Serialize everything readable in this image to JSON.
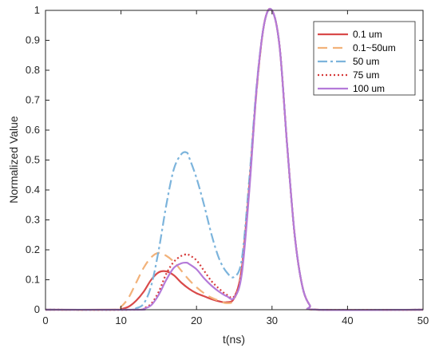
{
  "chart_data": {
    "type": "line",
    "title": "",
    "xlabel": "t(ns)",
    "ylabel": "Normalized Value",
    "xlim": [
      0,
      50
    ],
    "ylim": [
      0,
      1
    ],
    "xticks": [
      0,
      10,
      20,
      30,
      40,
      50
    ],
    "yticks": [
      0,
      0.1,
      0.2,
      0.3,
      0.4,
      0.5,
      0.6,
      0.7,
      0.8,
      0.9,
      1
    ],
    "xtick_labels": [
      "0",
      "10",
      "20",
      "30",
      "40",
      "50"
    ],
    "ytick_labels": [
      "0",
      "0.1",
      "0.2",
      "0.3",
      "0.4",
      "0.5",
      "0.6",
      "0.7",
      "0.8",
      "0.9",
      "1"
    ],
    "grid": false,
    "legend_position": "top-right",
    "series": [
      {
        "name": "0.1 um",
        "color": "#d94a4a",
        "dash": "solid",
        "x": [
          0,
          9,
          10,
          11,
          12,
          13,
          14,
          15,
          16,
          17,
          18,
          19,
          20,
          21,
          22,
          23,
          24,
          25,
          26,
          27,
          28,
          29,
          30,
          31,
          32,
          33,
          34,
          35,
          36,
          50
        ],
        "y": [
          0,
          0,
          0.002,
          0.01,
          0.03,
          0.06,
          0.1,
          0.125,
          0.128,
          0.115,
          0.09,
          0.07,
          0.055,
          0.045,
          0.035,
          0.028,
          0.025,
          0.04,
          0.14,
          0.42,
          0.75,
          0.96,
          1.0,
          0.88,
          0.55,
          0.25,
          0.08,
          0.015,
          0,
          0
        ]
      },
      {
        "name": "0.1~50um",
        "color": "#f2b27a",
        "dash": "12,7",
        "x": [
          0,
          9,
          10,
          11,
          12,
          13,
          14,
          15,
          16,
          17,
          18,
          19,
          20,
          21,
          22,
          23,
          24,
          25,
          26,
          27,
          28,
          29,
          30,
          31,
          32,
          33,
          34,
          35,
          36,
          50
        ],
        "y": [
          0,
          0,
          0.01,
          0.04,
          0.09,
          0.14,
          0.175,
          0.19,
          0.18,
          0.16,
          0.13,
          0.1,
          0.075,
          0.055,
          0.04,
          0.03,
          0.022,
          0.035,
          0.13,
          0.41,
          0.74,
          0.96,
          1.0,
          0.88,
          0.55,
          0.25,
          0.08,
          0.015,
          0,
          0
        ]
      },
      {
        "name": "50 um",
        "color": "#7cb4dc",
        "dash": "12,4,3,4",
        "x": [
          0,
          11,
          12,
          13,
          14,
          15,
          16,
          17,
          18,
          18.7,
          19,
          20,
          21,
          22,
          23,
          24,
          25,
          26,
          27,
          28,
          29,
          30,
          31,
          32,
          33,
          34,
          35,
          36,
          50
        ],
        "y": [
          0,
          0,
          0.005,
          0.02,
          0.08,
          0.2,
          0.35,
          0.47,
          0.52,
          0.525,
          0.51,
          0.44,
          0.35,
          0.25,
          0.17,
          0.125,
          0.11,
          0.17,
          0.44,
          0.76,
          0.96,
          1.0,
          0.88,
          0.55,
          0.25,
          0.08,
          0.015,
          0,
          0
        ]
      },
      {
        "name": "75 um",
        "color": "#d63a3a",
        "dash": "2,3",
        "x": [
          0,
          12,
          13,
          14,
          15,
          16,
          17,
          18,
          18.7,
          19,
          20,
          21,
          22,
          23,
          24,
          25,
          26,
          27,
          28,
          29,
          30,
          31,
          32,
          33,
          34,
          35,
          36,
          50
        ],
        "y": [
          0,
          0,
          0.005,
          0.02,
          0.06,
          0.12,
          0.16,
          0.18,
          0.185,
          0.183,
          0.165,
          0.13,
          0.095,
          0.07,
          0.05,
          0.045,
          0.13,
          0.41,
          0.75,
          0.96,
          1.0,
          0.88,
          0.55,
          0.25,
          0.08,
          0.015,
          0,
          0
        ]
      },
      {
        "name": "100 um",
        "color": "#b47ad9",
        "dash": "solid",
        "x": [
          0,
          12,
          13,
          14,
          15,
          16,
          17,
          18,
          18.7,
          19,
          20,
          21,
          22,
          23,
          24,
          25,
          26,
          27,
          28,
          29,
          30,
          31,
          32,
          33,
          34,
          35,
          36,
          50
        ],
        "y": [
          0,
          0,
          0.003,
          0.015,
          0.05,
          0.1,
          0.14,
          0.155,
          0.157,
          0.153,
          0.135,
          0.105,
          0.08,
          0.06,
          0.045,
          0.04,
          0.12,
          0.4,
          0.75,
          0.96,
          1.0,
          0.88,
          0.55,
          0.25,
          0.08,
          0.015,
          0,
          0
        ]
      }
    ]
  }
}
